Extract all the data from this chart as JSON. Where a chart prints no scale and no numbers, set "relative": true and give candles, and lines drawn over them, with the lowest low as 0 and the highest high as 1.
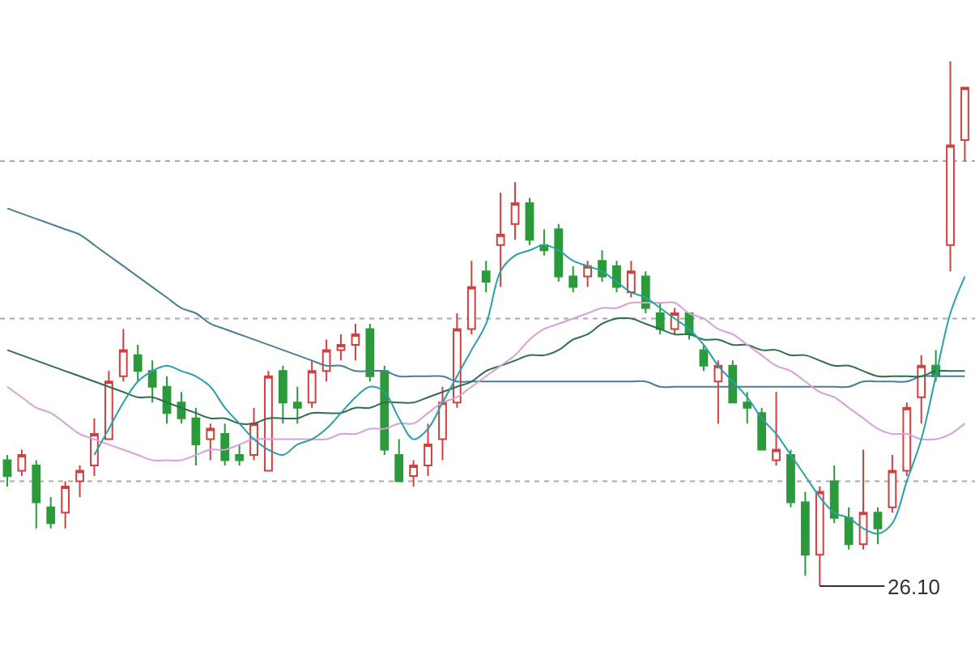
{
  "chart_data": {
    "type": "candlestick",
    "relative": true,
    "tick_labels": false,
    "grid": false,
    "categories": [
      null,
      null,
      null,
      null,
      null,
      null,
      null,
      null,
      null,
      null,
      null,
      null,
      null,
      null,
      null,
      null,
      null,
      null,
      null,
      null,
      null,
      null,
      null,
      null,
      null,
      null,
      null,
      null,
      null,
      null,
      null,
      null,
      null,
      null,
      null,
      null,
      null,
      null,
      null,
      null,
      null,
      null,
      null,
      null,
      null,
      null,
      null,
      null,
      null,
      null,
      null,
      null,
      null,
      null,
      null,
      null,
      null,
      null,
      null,
      null,
      null,
      null,
      null,
      null,
      null,
      null,
      null
    ],
    "series": [
      {
        "type": "line",
        "color": "#4a7f95",
        "values": [
          0.72,
          0.71,
          0.7,
          0.69,
          0.68,
          0.67,
          0.65,
          0.63,
          0.61,
          0.59,
          0.57,
          0.55,
          0.53,
          0.52,
          0.5,
          0.49,
          0.48,
          0.47,
          0.46,
          0.45,
          0.44,
          0.43,
          0.42,
          0.42,
          0.41,
          0.41,
          0.41,
          0.4,
          0.4,
          0.4,
          0.4,
          0.39,
          0.39,
          0.39,
          0.39,
          0.39,
          0.39,
          0.39,
          0.39,
          0.39,
          0.39,
          0.39,
          0.39,
          0.39,
          0.39,
          0.38,
          0.38,
          0.38,
          0.38,
          0.38,
          0.38,
          0.38,
          0.38,
          0.38,
          0.38,
          0.38,
          0.38,
          0.38,
          0.38,
          0.39,
          0.39,
          0.39,
          0.39,
          0.4,
          0.4,
          0.4,
          0.4
        ]
      },
      {
        "type": "line",
        "color": "#2f6f4f",
        "values": [
          0.45,
          0.44,
          0.43,
          0.42,
          0.41,
          0.4,
          0.39,
          0.38,
          0.37,
          0.36,
          0.36,
          0.35,
          0.34,
          0.33,
          0.32,
          0.32,
          0.31,
          0.31,
          0.32,
          0.32,
          0.32,
          0.33,
          0.33,
          0.33,
          0.34,
          0.34,
          0.35,
          0.35,
          0.35,
          0.36,
          0.37,
          0.38,
          0.39,
          0.41,
          0.42,
          0.43,
          0.44,
          0.44,
          0.45,
          0.47,
          0.48,
          0.5,
          0.51,
          0.51,
          0.5,
          0.49,
          0.48,
          0.48,
          0.47,
          0.47,
          0.46,
          0.46,
          0.45,
          0.45,
          0.44,
          0.44,
          0.43,
          0.42,
          0.42,
          0.41,
          0.4,
          0.4,
          0.4,
          0.4,
          0.41,
          0.41,
          0.41
        ]
      },
      {
        "type": "line",
        "color": "#d8a0d8",
        "values": [
          0.38,
          0.36,
          0.34,
          0.33,
          0.31,
          0.29,
          0.28,
          0.27,
          0.26,
          0.25,
          0.24,
          0.24,
          0.24,
          0.25,
          0.26,
          0.26,
          0.27,
          0.28,
          0.28,
          0.28,
          0.28,
          0.28,
          0.28,
          0.29,
          0.29,
          0.3,
          0.3,
          0.31,
          0.31,
          0.33,
          0.35,
          0.36,
          0.38,
          0.4,
          0.42,
          0.44,
          0.47,
          0.49,
          0.5,
          0.51,
          0.52,
          0.53,
          0.53,
          0.54,
          0.54,
          0.54,
          0.54,
          0.52,
          0.51,
          0.49,
          0.48,
          0.46,
          0.44,
          0.42,
          0.41,
          0.39,
          0.37,
          0.36,
          0.34,
          0.32,
          0.3,
          0.29,
          0.29,
          0.28,
          0.28,
          0.29,
          0.31
        ]
      },
      {
        "type": "line",
        "color": "#2aa0a8",
        "values": [
          null,
          null,
          null,
          null,
          null,
          null,
          0.25,
          0.3,
          0.35,
          0.39,
          0.41,
          0.42,
          0.41,
          0.4,
          0.38,
          0.34,
          0.31,
          0.28,
          0.26,
          0.25,
          0.27,
          0.28,
          0.3,
          0.33,
          0.36,
          0.38,
          0.37,
          0.32,
          0.28,
          0.3,
          0.35,
          0.4,
          0.45,
          0.5,
          0.6,
          0.63,
          0.64,
          0.65,
          0.64,
          0.62,
          0.61,
          0.6,
          0.58,
          0.56,
          0.55,
          0.53,
          0.51,
          0.49,
          0.46,
          0.42,
          0.39,
          0.36,
          0.32,
          0.29,
          0.25,
          0.21,
          0.17,
          0.14,
          0.13,
          0.11,
          0.1,
          0.12,
          0.2,
          0.28,
          0.4,
          0.52,
          0.59
        ]
      },
      {
        "type": "candlestick",
        "colors": [
          "#2a9a3a",
          "#d04040",
          "#2a9a3a",
          "#2a9a3a",
          "#d04040",
          "#d04040",
          "#d04040",
          "#d04040",
          "#d04040",
          "#2a9a3a",
          "#2a9a3a",
          "#2a9a3a",
          "#2a9a3a",
          "#2a9a3a",
          "#d04040",
          "#2a9a3a",
          "#2a9a3a",
          "#d04040",
          "#d04040",
          "#2a9a3a",
          "#2a9a3a",
          "#d04040",
          "#d04040",
          "#d04040",
          "#d04040",
          "#2a9a3a",
          "#2a9a3a",
          "#2a9a3a",
          "#d04040",
          "#d04040",
          "#d04040",
          "#d04040",
          "#d04040",
          "#2a9a3a",
          "#d04040",
          "#d04040",
          "#2a9a3a",
          "#2a9a3a",
          "#2a9a3a",
          "#2a9a3a",
          "#d04040",
          "#2a9a3a",
          "#2a9a3a",
          "#d04040",
          "#2a9a3a",
          "#2a9a3a",
          "#d04040",
          "#2a9a3a",
          "#2a9a3a",
          "#d04040",
          "#2a9a3a",
          "#2a9a3a",
          "#2a9a3a",
          "#d04040",
          "#2a9a3a",
          "#2a9a3a",
          "#d04040",
          "#2a9a3a",
          "#2a9a3a",
          "#d04040",
          "#2a9a3a",
          "#d04040",
          "#d04040",
          "#d04040",
          "#2a9a3a",
          "#d04040",
          "#d04040"
        ],
        "ohlc": [
          [
            0.24,
            0.25,
            0.19,
            0.21
          ],
          [
            0.22,
            0.26,
            0.21,
            0.25
          ],
          [
            0.23,
            0.24,
            0.11,
            0.16
          ],
          [
            0.15,
            0.17,
            0.11,
            0.12
          ],
          [
            0.14,
            0.2,
            0.11,
            0.19
          ],
          [
            0.2,
            0.23,
            0.17,
            0.22
          ],
          [
            0.23,
            0.32,
            0.21,
            0.29
          ],
          [
            0.28,
            0.41,
            0.28,
            0.39
          ],
          [
            0.4,
            0.49,
            0.39,
            0.45
          ],
          [
            0.44,
            0.46,
            0.39,
            0.41
          ],
          [
            0.41,
            0.43,
            0.35,
            0.38
          ],
          [
            0.38,
            0.4,
            0.31,
            0.33
          ],
          [
            0.35,
            0.37,
            0.31,
            0.32
          ],
          [
            0.32,
            0.34,
            0.23,
            0.27
          ],
          [
            0.28,
            0.31,
            0.24,
            0.3
          ],
          [
            0.29,
            0.31,
            0.23,
            0.24
          ],
          [
            0.25,
            0.27,
            0.23,
            0.24
          ],
          [
            0.25,
            0.34,
            0.24,
            0.31
          ],
          [
            0.22,
            0.41,
            0.22,
            0.4
          ],
          [
            0.41,
            0.42,
            0.31,
            0.35
          ],
          [
            0.35,
            0.38,
            0.31,
            0.34
          ],
          [
            0.35,
            0.43,
            0.34,
            0.41
          ],
          [
            0.41,
            0.47,
            0.39,
            0.45
          ],
          [
            0.45,
            0.48,
            0.43,
            0.46
          ],
          [
            0.46,
            0.5,
            0.43,
            0.48
          ],
          [
            0.49,
            0.5,
            0.39,
            0.4
          ],
          [
            0.41,
            0.42,
            0.25,
            0.26
          ],
          [
            0.25,
            0.28,
            0.2,
            0.2
          ],
          [
            0.21,
            0.24,
            0.19,
            0.23
          ],
          [
            0.23,
            0.31,
            0.21,
            0.27
          ],
          [
            0.28,
            0.38,
            0.24,
            0.35
          ],
          [
            0.35,
            0.52,
            0.34,
            0.49
          ],
          [
            0.49,
            0.62,
            0.48,
            0.57
          ],
          [
            0.6,
            0.62,
            0.56,
            0.58
          ],
          [
            0.65,
            0.75,
            0.57,
            0.67
          ],
          [
            0.69,
            0.77,
            0.66,
            0.73
          ],
          [
            0.73,
            0.74,
            0.65,
            0.66
          ],
          [
            0.65,
            0.68,
            0.63,
            0.64
          ],
          [
            0.68,
            0.69,
            0.58,
            0.59
          ],
          [
            0.59,
            0.61,
            0.56,
            0.57
          ],
          [
            0.59,
            0.62,
            0.57,
            0.61
          ],
          [
            0.62,
            0.64,
            0.58,
            0.59
          ],
          [
            0.61,
            0.62,
            0.56,
            0.57
          ],
          [
            0.56,
            0.62,
            0.55,
            0.6
          ],
          [
            0.59,
            0.6,
            0.52,
            0.53
          ],
          [
            0.52,
            0.54,
            0.48,
            0.49
          ],
          [
            0.49,
            0.53,
            0.48,
            0.52
          ],
          [
            0.52,
            0.52,
            0.47,
            0.48
          ],
          [
            0.45,
            0.46,
            0.41,
            0.42
          ],
          [
            0.39,
            0.43,
            0.31,
            0.42
          ],
          [
            0.42,
            0.43,
            0.35,
            0.35
          ],
          [
            0.35,
            0.37,
            0.31,
            0.34
          ],
          [
            0.33,
            0.34,
            0.26,
            0.26
          ],
          [
            0.24,
            0.37,
            0.23,
            0.26
          ],
          [
            0.25,
            0.26,
            0.15,
            0.16
          ],
          [
            0.16,
            0.18,
            0.02,
            0.06
          ],
          [
            0.06,
            0.19,
            0,
            0.18
          ],
          [
            0.2,
            0.23,
            0.12,
            0.13
          ],
          [
            0.13,
            0.15,
            0.07,
            0.08
          ],
          [
            0.08,
            0.26,
            0.07,
            0.14
          ],
          [
            0.14,
            0.15,
            0.08,
            0.11
          ],
          [
            0.15,
            0.25,
            0.14,
            0.22
          ],
          [
            0.22,
            0.35,
            0.21,
            0.34
          ],
          [
            0.36,
            0.44,
            0.31,
            0.42
          ],
          [
            0.42,
            0.45,
            0.39,
            0.4
          ],
          [
            0.65,
            1.0,
            0.6,
            0.84
          ],
          [
            0.85,
            0.95,
            0.81,
            0.95
          ]
        ]
      }
    ],
    "ref_lines": [
      {
        "axis": "y",
        "value": 0.81,
        "color": "#aaaaaa",
        "line_style": "dotted"
      },
      {
        "axis": "y",
        "value": 0.51,
        "color": "#aaaaaa",
        "line_style": "dotted"
      },
      {
        "axis": "y",
        "value": 0.2,
        "color": "#aaaaaa",
        "line_style": "dotted"
      }
    ],
    "annotations": [
      "26.10"
    ]
  }
}
